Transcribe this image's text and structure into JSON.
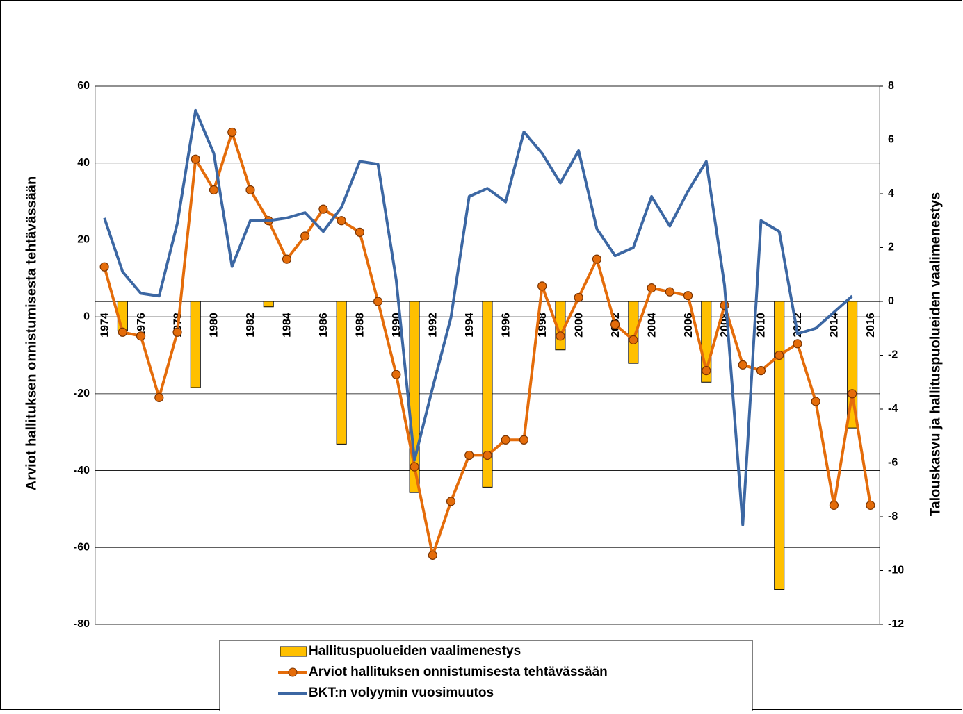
{
  "chart_data": {
    "type": "combo",
    "y_label": "Arviot hallituksen onnistumisesta tehtävässään",
    "y2_label": "Talouskasvu ja hallituspuolueiden vaalimenestys",
    "categories": [
      "1974",
      null,
      "1976",
      null,
      "1978",
      null,
      "1980",
      null,
      "1982",
      null,
      "1984",
      null,
      "1986",
      null,
      "1988",
      null,
      "1990",
      null,
      "1992",
      null,
      "1994",
      null,
      "1996",
      null,
      "1998",
      null,
      "2000",
      null,
      "2002",
      null,
      "2004",
      null,
      "2006",
      null,
      "2008",
      null,
      "2010",
      null,
      "2012",
      null,
      "2014",
      null,
      "2016"
    ],
    "ylim": [
      -80,
      60
    ],
    "yticks": [
      60,
      40,
      20,
      0,
      -20,
      -40,
      -60,
      -80
    ],
    "y2lim": [
      -12,
      8
    ],
    "y2ticks": [
      8,
      6,
      4,
      2,
      0,
      -2,
      -4,
      -6,
      -8,
      -10,
      -12
    ],
    "grid": true,
    "legend": "bottom",
    "series": [
      {
        "name": "Hallituspuolueiden vaalimenestys",
        "type": "bar",
        "axis": "y2",
        "color": "#ffc000",
        "values": [
          null,
          -1.1,
          null,
          null,
          null,
          -3.2,
          null,
          null,
          null,
          -0.2,
          null,
          null,
          null,
          -5.3,
          null,
          null,
          null,
          -7.1,
          null,
          null,
          null,
          -6.9,
          null,
          null,
          null,
          -1.8,
          null,
          null,
          null,
          -2.3,
          null,
          null,
          null,
          -3.0,
          null,
          null,
          null,
          -10.7,
          null,
          null,
          null,
          -4.7,
          null
        ]
      },
      {
        "name": "Arviot hallituksen onnistumisesta tehtävässään",
        "type": "line",
        "marker": true,
        "color": "#e46c0a",
        "values": [
          13,
          -4,
          -5,
          -21,
          -4,
          41,
          33,
          48,
          33,
          25,
          15,
          21,
          28,
          25,
          22,
          4,
          -15,
          -39,
          -62,
          -48,
          -36,
          -36,
          -32,
          -32,
          8,
          -5,
          5,
          15,
          -2,
          -6,
          7.5,
          6.5,
          5.5,
          -14,
          3,
          -12.5,
          -14,
          -10,
          -7,
          -22,
          -49,
          -20,
          -49
        ]
      },
      {
        "name": "BKT:n volyymin vuosimuutos",
        "type": "line",
        "marker": false,
        "axis": "y2",
        "color": "#3c67a3",
        "values": [
          3.1,
          1.1,
          0.3,
          0.2,
          2.9,
          7.1,
          5.5,
          1.3,
          3.0,
          3.0,
          3.1,
          3.3,
          2.6,
          3.5,
          5.2,
          5.1,
          0.8,
          -5.9,
          -3.2,
          -0.6,
          3.9,
          4.2,
          3.7,
          6.3,
          5.5,
          4.4,
          5.6,
          2.7,
          1.7,
          2.0,
          3.9,
          2.8,
          4.1,
          5.2,
          0.6,
          -8.3,
          3.0,
          2.6,
          -1.2,
          -1.0,
          -0.4,
          0.2,
          null
        ]
      }
    ]
  }
}
